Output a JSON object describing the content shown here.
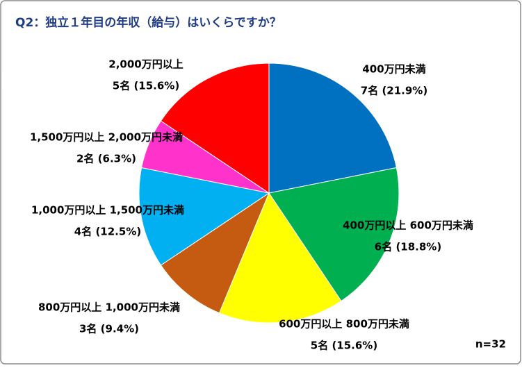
{
  "chart_data": {
    "type": "pie",
    "title": "Q2：独立１年目の年収（給与）はいくらですか？",
    "categories": [
      "400万円未満",
      "400万円以上 600万円未満",
      "600万円以上 800万円未満",
      "800万円以上 1,000万円未満",
      "1,000万円以上 1,500万円未満",
      "1,500万円以上 2,000万円未満",
      "2,000万円以上"
    ],
    "values": [
      7,
      6,
      5,
      3,
      4,
      2,
      5
    ],
    "value_labels": [
      "7名 (21.9%)",
      "6名 (18.8%)",
      "5名 (15.6%)",
      "3名 (9.4%)",
      "4名 (12.5%)",
      "2名 (6.3%)",
      "5名 (15.6%)"
    ],
    "colors": [
      "#0070c0",
      "#00b050",
      "#ffff00",
      "#c55a11",
      "#00b0f0",
      "#ff33cc",
      "#ff0000"
    ],
    "note": "n=32"
  }
}
